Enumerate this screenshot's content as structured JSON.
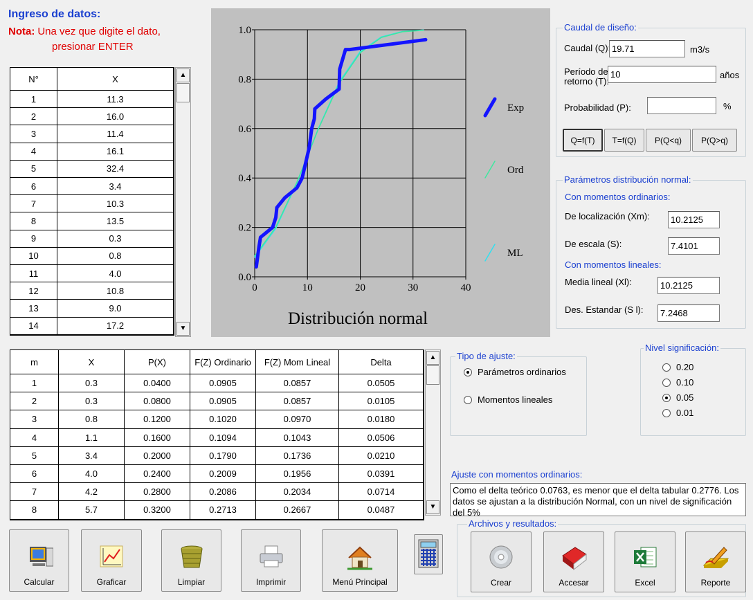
{
  "header": {
    "title": "Ingreso de datos:",
    "note_label": "Nota:",
    "note_lines": [
      "Una vez que digite el dato,",
      "presionar ENTER"
    ]
  },
  "input_table": {
    "columns": [
      "N°",
      "X"
    ],
    "rows": [
      [
        "1",
        "11.3"
      ],
      [
        "2",
        "16.0"
      ],
      [
        "3",
        "11.4"
      ],
      [
        "4",
        "16.1"
      ],
      [
        "5",
        "32.4"
      ],
      [
        "6",
        "3.4"
      ],
      [
        "7",
        "10.3"
      ],
      [
        "8",
        "13.5"
      ],
      [
        "9",
        "0.3"
      ],
      [
        "10",
        "0.8"
      ],
      [
        "11",
        "4.0"
      ],
      [
        "12",
        "10.8"
      ],
      [
        "13",
        "9.0"
      ],
      [
        "14",
        "17.2"
      ]
    ]
  },
  "chart_data": {
    "type": "line",
    "title": "Distribución normal",
    "xlim": [
      0,
      40
    ],
    "xticks": [
      0,
      10,
      20,
      30,
      40
    ],
    "ylim": [
      0,
      1
    ],
    "yticks": [
      {
        "value": 0,
        "label": "0.0"
      },
      0.2,
      0.4,
      0.6,
      0.8,
      {
        "value": 1,
        "label": "1.0"
      }
    ],
    "grid": true,
    "background": "#c0c0c0",
    "legend": "right",
    "series": [
      {
        "name": "Exp",
        "color": "#1414ff",
        "line_width": 5,
        "x": [
          0.3,
          0.8,
          1.1,
          3.4,
          4.0,
          4.2,
          5.7,
          8.0,
          9.0,
          10.3,
          10.8,
          11.3,
          11.4,
          13.5,
          16.0,
          16.1,
          17.2,
          18.0,
          32.4
        ],
        "values": [
          0.04,
          0.12,
          0.16,
          0.2,
          0.24,
          0.28,
          0.32,
          0.36,
          0.4,
          0.52,
          0.6,
          0.64,
          0.68,
          0.72,
          0.76,
          0.84,
          0.92,
          0.92,
          0.96
        ]
      },
      {
        "name": "Ord",
        "color": "#3ee8a0",
        "line_width": 1.5,
        "x": [
          0,
          4,
          8,
          12,
          16,
          20,
          24,
          28,
          32
        ],
        "values": [
          0.084,
          0.201,
          0.383,
          0.595,
          0.783,
          0.907,
          0.969,
          0.992,
          0.998
        ]
      },
      {
        "name": "ML",
        "color": "#30e0f0",
        "line_width": 1.5,
        "x": [
          0,
          4,
          8,
          12,
          16,
          20,
          24,
          28,
          32
        ],
        "values": [
          0.079,
          0.196,
          0.38,
          0.597,
          0.788,
          0.912,
          0.971,
          0.993,
          0.999
        ]
      }
    ]
  },
  "design_flow": {
    "legend": "Caudal de diseño:",
    "fields": [
      {
        "label": "Caudal (Q):",
        "value": "19.71",
        "unit": "m3/s"
      },
      {
        "label": "Período de retorno (T):",
        "value": "10",
        "unit": "años"
      },
      {
        "label": "Probabilidad (P):",
        "unit": "%"
      }
    ],
    "buttons": [
      "Q=f(T)",
      "T=f(Q)",
      "P(Q<q)",
      "P(Q>q)"
    ]
  },
  "normal_params": {
    "legend": "Parámetros distribución normal:",
    "groups": [
      {
        "heading": "Con momentos ordinarios:",
        "fields": [
          {
            "label": "De localización (Xm):",
            "value": "10.2125"
          },
          {
            "label": "De escala (S):",
            "value": "7.4101"
          }
        ]
      },
      {
        "heading": "Con momentos lineales:",
        "fields": [
          {
            "label": "Media lineal (Xl):",
            "value": "10.2125"
          },
          {
            "label": "Des. Estandar (S l):",
            "value": "7.2468"
          }
        ]
      }
    ]
  },
  "results_table": {
    "columns": [
      "m",
      "X",
      "P(X)",
      "F(Z) Ordinario",
      "F(Z) Mom Lineal",
      "Delta"
    ],
    "rows": [
      [
        "1",
        "0.3",
        "0.0400",
        "0.0905",
        "0.0857",
        "0.0505"
      ],
      [
        "2",
        "0.3",
        "0.0800",
        "0.0905",
        "0.0857",
        "0.0105"
      ],
      [
        "3",
        "0.8",
        "0.1200",
        "0.1020",
        "0.0970",
        "0.0180"
      ],
      [
        "4",
        "1.1",
        "0.1600",
        "0.1094",
        "0.1043",
        "0.0506"
      ],
      [
        "5",
        "3.4",
        "0.2000",
        "0.1790",
        "0.1736",
        "0.0210"
      ],
      [
        "6",
        "4.0",
        "0.2400",
        "0.2009",
        "0.1956",
        "0.0391"
      ],
      [
        "7",
        "4.2",
        "0.2800",
        "0.2086",
        "0.2034",
        "0.0714"
      ],
      [
        "8",
        "5.7",
        "0.3200",
        "0.2713",
        "0.2667",
        "0.0487"
      ]
    ]
  },
  "fit_type": {
    "legend": "Tipo de ajuste:",
    "options": [
      "Parámetros ordinarios",
      "Momentos lineales"
    ],
    "selected": 0
  },
  "significance": {
    "legend": "Nivel significación:",
    "options": [
      "0.20",
      "0.10",
      "0.05",
      "0.01"
    ],
    "selected": 2
  },
  "conclusion": {
    "label": "Ajuste con momentos ordinarios:",
    "text": "Como el delta teórico 0.0763, es menor que el delta tabular 0.2776. Los datos se ajustan a la distribución Normal, con un nivel de significación del 5%"
  },
  "toolbar": {
    "buttons": [
      "Calcular",
      "Graficar",
      "Limpiar",
      "Imprimir",
      "Menú Principal"
    ]
  },
  "files": {
    "legend": "Archivos y resultados:",
    "buttons": [
      "Crear",
      "Accesar",
      "Excel",
      "Reporte"
    ]
  }
}
